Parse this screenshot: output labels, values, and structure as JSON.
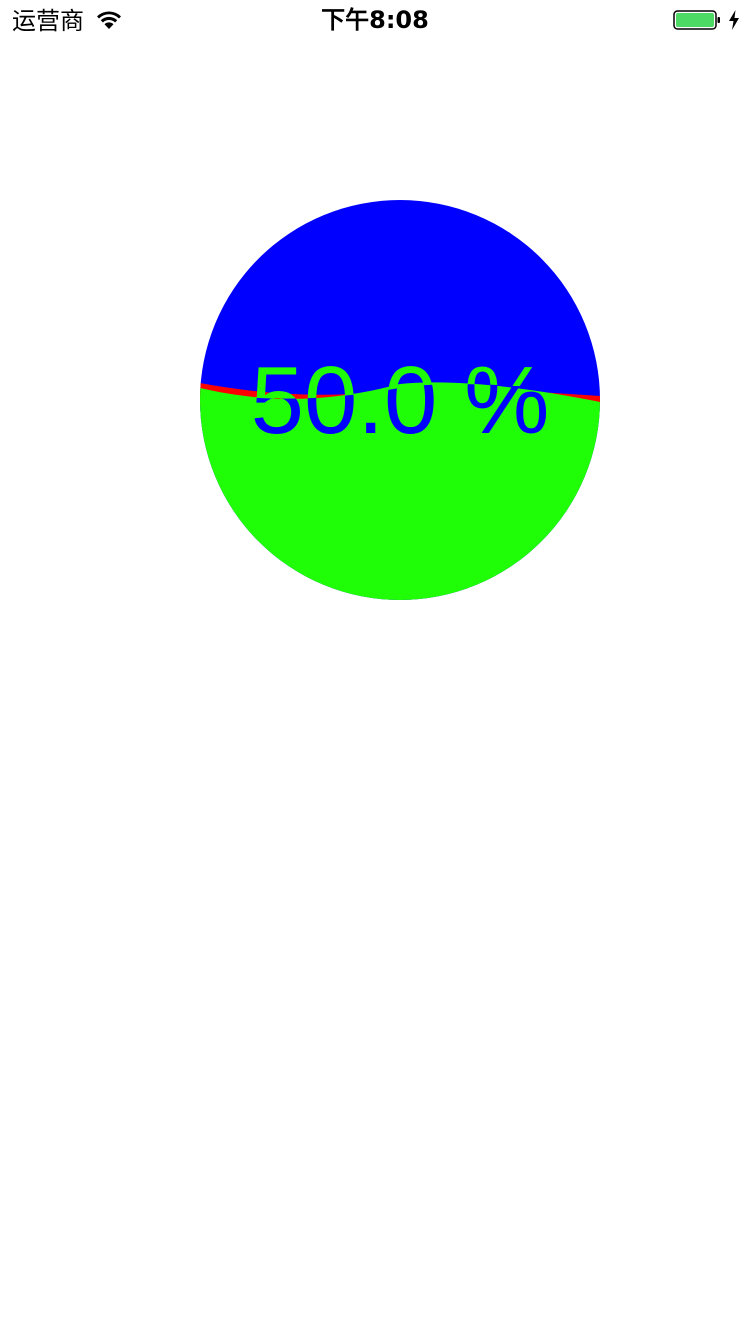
{
  "status_bar": {
    "carrier": "运营商",
    "time": "下午8:08",
    "wifi_icon": "wifi-icon",
    "battery_icon": "battery-icon",
    "charging_icon": "charging-bolt-icon",
    "battery_color": "#4cd964"
  },
  "wave_progress": {
    "percent_text": "50.0 %",
    "progress": 0.5,
    "colors": {
      "empty_fill": "#0000ff",
      "liquid_fill": "#1ffe07",
      "wave_line": "#ff0000",
      "text_over_empty": "#1ffe07",
      "text_over_liquid": "#0000ff"
    }
  }
}
